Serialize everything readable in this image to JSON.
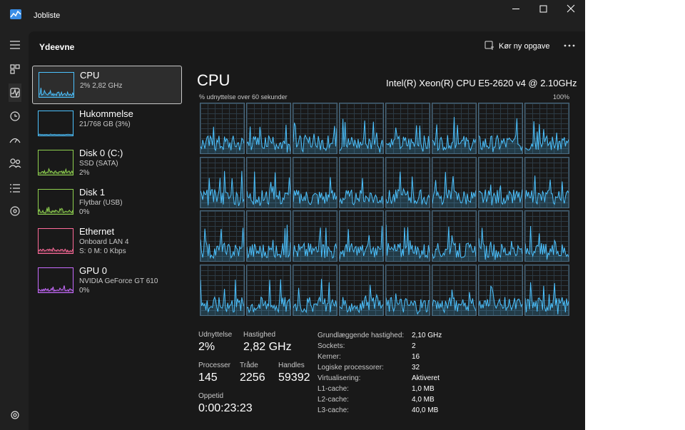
{
  "window": {
    "title": "Jobliste"
  },
  "header": {
    "title": "Ydeevne",
    "action": "Kør ny opgave"
  },
  "resources": [
    {
      "name": "CPU",
      "lines": [
        "2% 2,82 GHz"
      ],
      "color": "#4cc2ff"
    },
    {
      "name": "Hukommelse",
      "lines": [
        "21/768 GB (3%)"
      ],
      "color": "#4cc2ff"
    },
    {
      "name": "Disk 0 (C:)",
      "lines": [
        "SSD (SATA)",
        "2%"
      ],
      "color": "#8fd14f"
    },
    {
      "name": "Disk 1",
      "lines": [
        "Flytbar (USB)",
        "0%"
      ],
      "color": "#8fd14f"
    },
    {
      "name": "Ethernet",
      "lines": [
        "Onboard LAN 4",
        "S: 0 M: 0 Kbps"
      ],
      "color": "#ff6b9a"
    },
    {
      "name": "GPU 0",
      "lines": [
        "NVIDIA GeForce GT 610",
        "0%"
      ],
      "color": "#c86bff"
    }
  ],
  "cpu": {
    "title": "CPU",
    "model": "Intel(R) Xeon(R) CPU E5-2620 v4 @ 2.10GHz",
    "graph_label": "% udnyttelse over 60 sekunder",
    "graph_max": "100%",
    "stats": [
      [
        {
          "label": "Udnyttelse",
          "value": "2%"
        },
        {
          "label": "Hastighed",
          "value": "2,82 GHz"
        }
      ],
      [
        {
          "label": "Processer",
          "value": "145"
        },
        {
          "label": "Tråde",
          "value": "2256"
        },
        {
          "label": "Handles",
          "value": "59392"
        }
      ],
      [
        {
          "label": "Oppetid",
          "value": "0:00:23:23"
        }
      ]
    ],
    "details": [
      {
        "label": "Grundlæggende hastighed:",
        "value": "2,10 GHz"
      },
      {
        "label": "Sockets:",
        "value": "2"
      },
      {
        "label": "Kerner:",
        "value": "16"
      },
      {
        "label": "Logiske processorer:",
        "value": "32"
      },
      {
        "label": "Virtualisering:",
        "value": "Aktiveret"
      },
      {
        "label": "L1-cache:",
        "value": "1,0 MB"
      },
      {
        "label": "L2-cache:",
        "value": "4,0 MB"
      },
      {
        "label": "L3-cache:",
        "value": "40,0 MB"
      }
    ]
  }
}
